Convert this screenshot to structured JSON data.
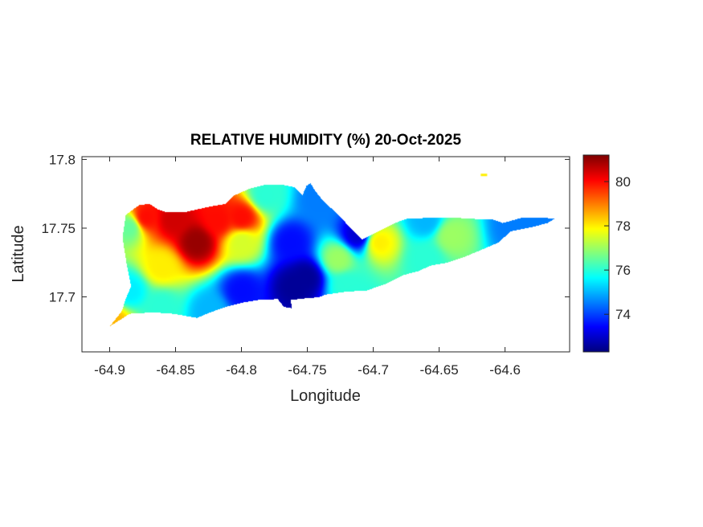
{
  "chart_data": {
    "type": "heatmap",
    "title": "RELATIVE HUMIDITY (%) 20-Oct-2025",
    "xlabel": "Longitude",
    "ylabel": "Latitude",
    "xlim": [
      -64.921,
      -64.551
    ],
    "ylim": [
      17.66,
      17.802
    ],
    "xticks": [
      -64.9,
      -64.85,
      -64.8,
      -64.75,
      -64.7,
      -64.65,
      -64.6
    ],
    "xtick_labels": [
      "-64.9",
      "-64.85",
      "-64.8",
      "-64.75",
      "-64.7",
      "-64.65",
      "-64.6"
    ],
    "yticks": [
      17.7,
      17.75,
      17.8
    ],
    "ytick_labels": [
      "17.7",
      "17.75",
      "17.8"
    ],
    "colormap": "jet",
    "clim": [
      72.3,
      81.2
    ],
    "colorbar_ticks": [
      74,
      76,
      78,
      80
    ],
    "colorbar_tick_labels": [
      "74",
      "76",
      "78",
      "80"
    ],
    "grid": false,
    "land_outline": [
      [
        -64.9,
        17.679
      ],
      [
        -64.891,
        17.69
      ],
      [
        -64.888,
        17.699
      ],
      [
        -64.884,
        17.708
      ],
      [
        -64.887,
        17.722
      ],
      [
        -64.89,
        17.74
      ],
      [
        -64.89,
        17.747
      ],
      [
        -64.888,
        17.76
      ],
      [
        -64.878,
        17.767
      ],
      [
        -64.87,
        17.768
      ],
      [
        -64.864,
        17.764
      ],
      [
        -64.858,
        17.762
      ],
      [
        -64.843,
        17.762
      ],
      [
        -64.824,
        17.766
      ],
      [
        -64.812,
        17.768
      ],
      [
        -64.806,
        17.774
      ],
      [
        -64.794,
        17.779
      ],
      [
        -64.782,
        17.782
      ],
      [
        -64.77,
        17.782
      ],
      [
        -64.76,
        17.78
      ],
      [
        -64.754,
        17.774
      ],
      [
        -64.751,
        17.781
      ],
      [
        -64.748,
        17.783
      ],
      [
        -64.744,
        17.777
      ],
      [
        -64.739,
        17.771
      ],
      [
        -64.727,
        17.76
      ],
      [
        -64.715,
        17.748
      ],
      [
        -64.709,
        17.742
      ],
      [
        -64.696,
        17.748
      ],
      [
        -64.684,
        17.754
      ],
      [
        -64.675,
        17.757
      ],
      [
        -64.654,
        17.758
      ],
      [
        -64.641,
        17.758
      ],
      [
        -64.623,
        17.757
      ],
      [
        -64.611,
        17.757
      ],
      [
        -64.602,
        17.754
      ],
      [
        -64.587,
        17.758
      ],
      [
        -64.571,
        17.758
      ],
      [
        -64.563,
        17.757
      ],
      [
        -64.568,
        17.754
      ],
      [
        -64.58,
        17.751
      ],
      [
        -64.596,
        17.748
      ],
      [
        -64.605,
        17.74
      ],
      [
        -64.617,
        17.735
      ],
      [
        -64.632,
        17.729
      ],
      [
        -64.645,
        17.725
      ],
      [
        -64.657,
        17.723
      ],
      [
        -64.666,
        17.719
      ],
      [
        -64.678,
        17.716
      ],
      [
        -64.69,
        17.71
      ],
      [
        -64.705,
        17.705
      ],
      [
        -64.721,
        17.704
      ],
      [
        -64.736,
        17.702
      ],
      [
        -64.742,
        17.7
      ],
      [
        -64.754,
        17.699
      ],
      [
        -64.763,
        17.698
      ],
      [
        -64.762,
        17.692
      ],
      [
        -64.768,
        17.693
      ],
      [
        -64.773,
        17.699
      ],
      [
        -64.779,
        17.698
      ],
      [
        -64.788,
        17.698
      ],
      [
        -64.8,
        17.696
      ],
      [
        -64.812,
        17.693
      ],
      [
        -64.824,
        17.689
      ],
      [
        -64.834,
        17.685
      ],
      [
        -64.84,
        17.686
      ],
      [
        -64.852,
        17.688
      ],
      [
        -64.867,
        17.689
      ],
      [
        -64.885,
        17.688
      ],
      [
        -64.895,
        17.682
      ]
    ],
    "islet": {
      "lon": -64.616,
      "lat": 17.789,
      "value": 78
    },
    "samples": [
      {
        "lon": -64.834,
        "lat": 17.74,
        "value": 81
      },
      {
        "lon": -64.873,
        "lat": 17.758,
        "value": 80
      },
      {
        "lon": -64.852,
        "lat": 17.757,
        "value": 80.5
      },
      {
        "lon": -64.818,
        "lat": 17.756,
        "value": 80
      },
      {
        "lon": -64.8,
        "lat": 17.758,
        "value": 80
      },
      {
        "lon": -64.763,
        "lat": 17.74,
        "value": 73.5
      },
      {
        "lon": -64.751,
        "lat": 17.714,
        "value": 72.5
      },
      {
        "lon": -64.76,
        "lat": 17.708,
        "value": 72.5
      },
      {
        "lon": -64.8,
        "lat": 17.705,
        "value": 73.5
      },
      {
        "lon": -64.712,
        "lat": 17.745,
        "value": 73
      },
      {
        "lon": -64.861,
        "lat": 17.722,
        "value": 78
      },
      {
        "lon": -64.8,
        "lat": 17.74,
        "value": 77.5
      },
      {
        "lon": -64.696,
        "lat": 17.74,
        "value": 78
      },
      {
        "lon": -64.641,
        "lat": 17.745,
        "value": 77
      },
      {
        "lon": -64.885,
        "lat": 17.705,
        "value": 75.5
      },
      {
        "lon": -64.861,
        "lat": 17.693,
        "value": 76
      },
      {
        "lon": -64.824,
        "lat": 17.69,
        "value": 75
      },
      {
        "lon": -64.721,
        "lat": 17.708,
        "value": 76
      },
      {
        "lon": -64.66,
        "lat": 17.728,
        "value": 76
      },
      {
        "lon": -64.66,
        "lat": 17.756,
        "value": 75
      },
      {
        "lon": -64.593,
        "lat": 17.752,
        "value": 74.5
      },
      {
        "lon": -64.574,
        "lat": 17.755,
        "value": 74.5
      },
      {
        "lon": -64.782,
        "lat": 17.774,
        "value": 76
      },
      {
        "lon": -64.742,
        "lat": 17.771,
        "value": 74.5
      },
      {
        "lon": -64.898,
        "lat": 17.682,
        "value": 78.5
      },
      {
        "lon": -64.885,
        "lat": 17.751,
        "value": 76.5
      },
      {
        "lon": -64.727,
        "lat": 17.728,
        "value": 77
      }
    ]
  }
}
